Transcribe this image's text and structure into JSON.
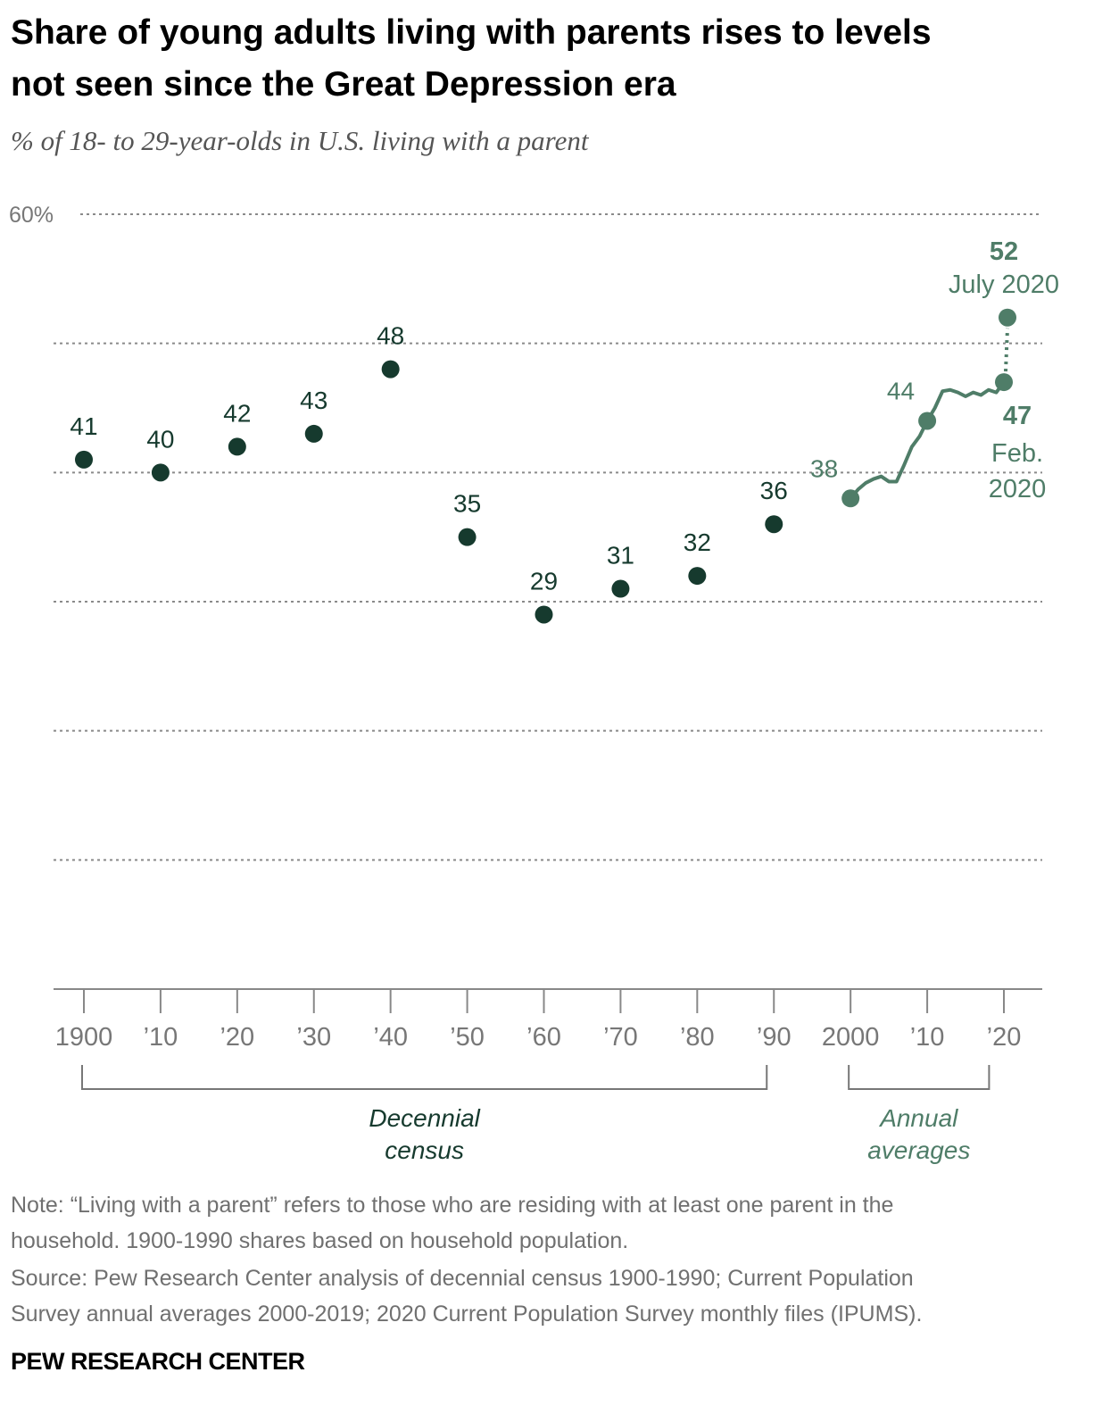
{
  "chart_data": {
    "type": "line",
    "title": [
      "Share of young adults living with parents rises to levels",
      "not seen since the Great Depression era"
    ],
    "subtitle": "% of 18- to 29-year-olds in U.S. living with a parent",
    "ylim": [
      0,
      60
    ],
    "yticks": [
      {
        "value": 60,
        "label": "60%"
      }
    ],
    "ygrid": [
      10,
      20,
      30,
      40,
      50,
      60
    ],
    "grid": true,
    "xlim": [
      1900,
      2020
    ],
    "xticks": [
      1900,
      {
        "value": 1910,
        "label": "’10"
      },
      {
        "value": 1920,
        "label": "’20"
      },
      {
        "value": 1930,
        "label": "’30"
      },
      {
        "value": 1940,
        "label": "’40"
      },
      {
        "value": 1950,
        "label": "’50"
      },
      {
        "value": 1960,
        "label": "’60"
      },
      {
        "value": 1970,
        "label": "’70"
      },
      {
        "value": 1980,
        "label": "’80"
      },
      {
        "value": 1990,
        "label": "’90"
      },
      2000,
      {
        "value": 2010,
        "label": "’10"
      },
      {
        "value": 2020,
        "label": "’20"
      }
    ],
    "series": [
      {
        "name": "Decennial census",
        "color": "#163a2e",
        "line": false,
        "x": [
          1900,
          1910,
          1920,
          1930,
          1940,
          1950,
          1960,
          1970,
          1980,
          1990
        ],
        "values": [
          41,
          40,
          42,
          43,
          48,
          35,
          29,
          31,
          32,
          36
        ],
        "value_labels": [
          "41",
          "40",
          "42",
          "43",
          "48",
          "35",
          "29",
          "31",
          "32",
          "36"
        ]
      },
      {
        "name": "Annual averages",
        "color": "#4f7d68",
        "line": true,
        "x": [
          2000,
          2001,
          2002,
          2003,
          2004,
          2005,
          2006,
          2007,
          2008,
          2009,
          2010,
          2011,
          2012,
          2013,
          2014,
          2015,
          2016,
          2017,
          2018,
          2019
        ],
        "values": [
          38,
          38.7,
          39.2,
          39.5,
          39.7,
          39.3,
          39.3,
          40.6,
          42,
          42.8,
          44,
          45,
          46.3,
          46.4,
          46.2,
          45.9,
          46.2,
          46,
          46.4,
          46.2
        ],
        "value_labels": [
          "38",
          null,
          null,
          null,
          null,
          null,
          null,
          null,
          null,
          null,
          "44",
          null,
          null,
          null,
          null,
          null,
          null,
          null,
          null,
          null
        ]
      }
    ],
    "points": [
      {
        "label": "Feb. 2020",
        "x": 2020,
        "value": 47,
        "color": "#4f7d68"
      },
      {
        "label": "July 2020",
        "x": 2020,
        "value": 52,
        "color": "#4f7d68"
      }
    ],
    "note": [
      "Note: “Living with a parent” refers to those who are residing with at least one parent in the",
      "household. 1900-1990 shares based on household population."
    ],
    "source": [
      "Source: Pew Research Center analysis of decennial census 1900-1990; Current Population",
      "Survey annual averages 2000-2019; 2020 Current Population Survey monthly files (IPUMS)."
    ],
    "brand": "PEW RESEARCH CENTER"
  }
}
